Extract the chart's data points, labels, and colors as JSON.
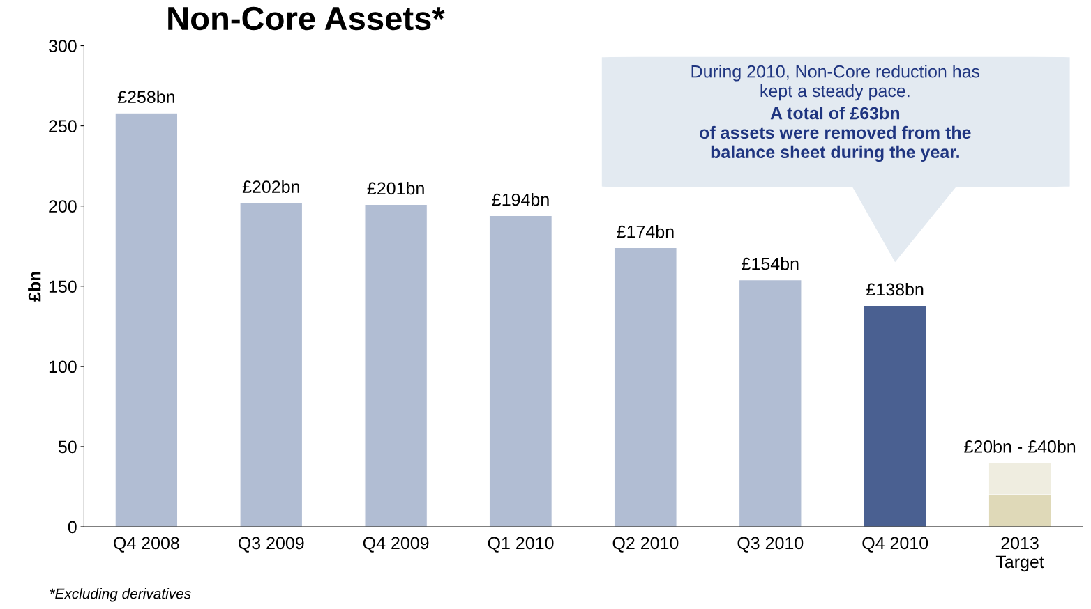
{
  "chart_data": {
    "type": "bar",
    "title": "Non-Core Assets*",
    "ylabel": "£bn",
    "categories": [
      "Q4 2008",
      "Q3 2009",
      "Q4 2009",
      "Q1 2010",
      "Q2 2010",
      "Q3 2010",
      "Q4 2010",
      "2013\nTarget"
    ],
    "stacked": true,
    "series": [
      {
        "colors": [
          "#b1bdd3",
          "#b1bdd3",
          "#b1bdd3",
          "#b1bdd3",
          "#b1bdd3",
          "#b1bdd3",
          "#4a6091",
          "#dfd9b8"
        ],
        "values": [
          258,
          202,
          201,
          194,
          174,
          154,
          138,
          20
        ]
      },
      {
        "color": "#efede0",
        "values": [
          null,
          null,
          null,
          null,
          null,
          null,
          null,
          20
        ]
      }
    ],
    "value_labels": [
      "£258bn",
      "£202bn",
      "£201bn",
      "£194bn",
      "£174bn",
      "£154bn",
      "£138bn",
      "£20bn - £40bn"
    ],
    "ylim": [
      0,
      300
    ],
    "yticks": [
      0,
      50,
      100,
      150,
      200,
      250,
      300
    ],
    "grid": false,
    "annotations": [
      "During 2010, Non-Core reduction has\nkept a steady pace.",
      "A total of £63bn\nof assets were removed from the\nbalance sheet during the year.",
      "*Excluding derivatives"
    ]
  }
}
